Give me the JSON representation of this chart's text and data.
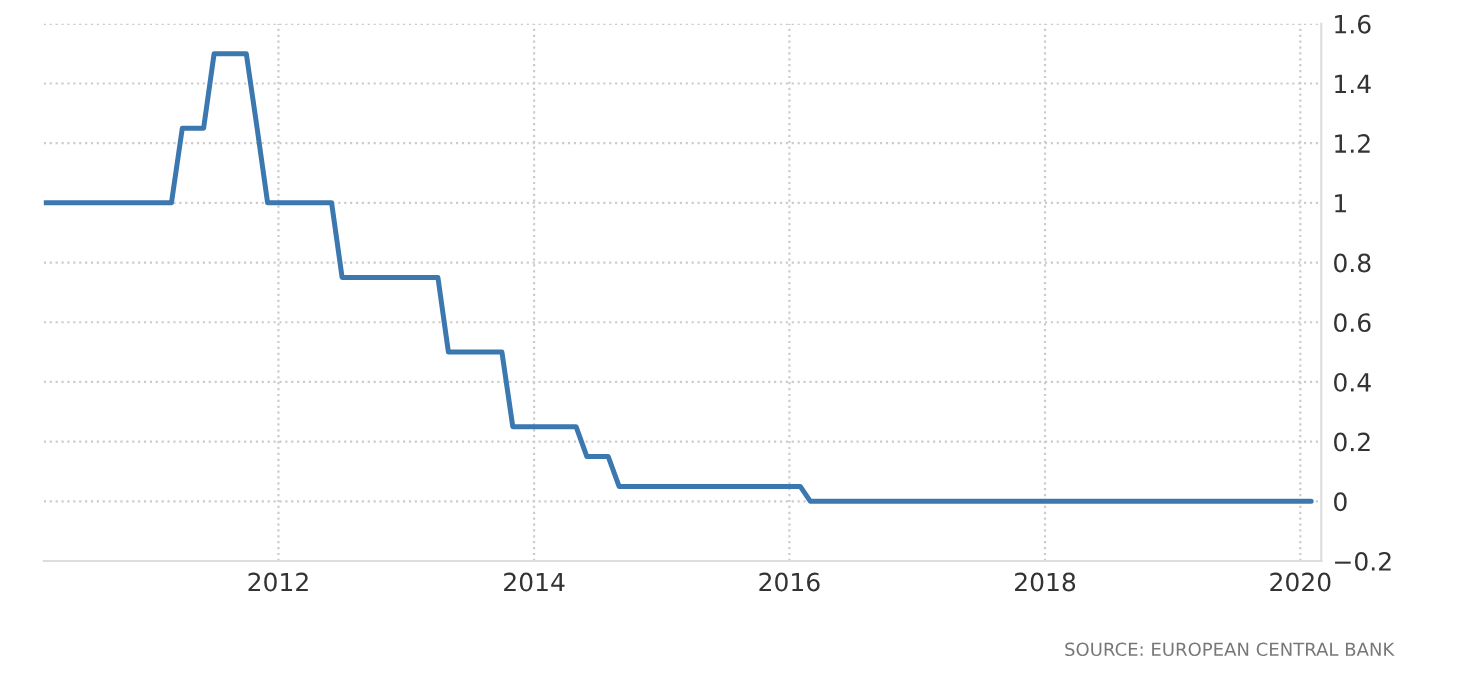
{
  "chart_data": {
    "type": "line",
    "x": [
      "2010-03",
      "2011-03",
      "2011-04",
      "2011-06",
      "2011-07",
      "2011-10",
      "2011-11",
      "2011-12",
      "2012-06",
      "2012-07",
      "2013-04",
      "2013-05",
      "2013-10",
      "2013-11",
      "2014-05",
      "2014-06",
      "2014-08",
      "2014-09",
      "2016-02",
      "2016-03",
      "2020-02"
    ],
    "series": [
      {
        "color": "#3b78b0",
        "values": [
          1,
          1,
          1.25,
          1.25,
          1.5,
          1.5,
          1.25,
          1,
          1,
          0.75,
          0.75,
          0.5,
          0.5,
          0.25,
          0.25,
          0.15,
          0.15,
          0.05,
          0.05,
          0,
          0
        ]
      }
    ],
    "xlim": [
      "2010-03",
      "2020-03"
    ],
    "xticks": [
      "2012",
      "2014",
      "2016",
      "2018",
      "2020"
    ],
    "ylim": [
      -0.2,
      1.6
    ],
    "yticks": [
      -0.2,
      0,
      0.2,
      0.4,
      0.6,
      0.8,
      1,
      1.2,
      1.4,
      1.6
    ],
    "grid": true,
    "line_style": "solid",
    "marker": "none",
    "annotations": [
      "SOURCE: EUROPEAN CENTRAL BANK"
    ]
  }
}
